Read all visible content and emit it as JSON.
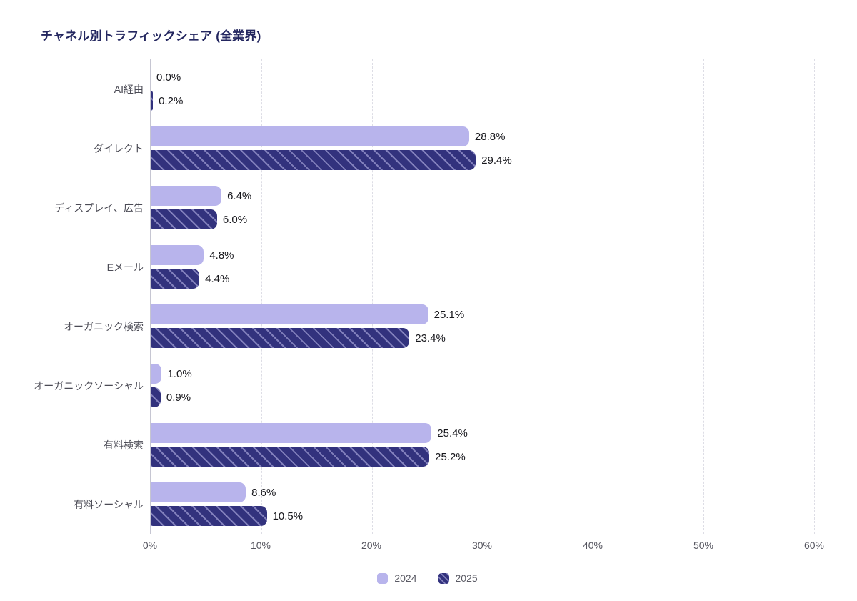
{
  "title": "チャネル別トラフィックシェア (全業界)",
  "legend": [
    {
      "label": "2024",
      "color": "#b8b4ec",
      "hatch": false
    },
    {
      "label": "2025",
      "color": "#32327d",
      "hatch": true
    }
  ],
  "chart_data": {
    "type": "bar",
    "orientation": "horizontal",
    "title": "チャネル別トラフィックシェア (全業界)",
    "categories": [
      "AI経由",
      "ダイレクト",
      "ディスプレイ、広告",
      "Eメール",
      "オーガニック検索",
      "オーガニックソーシャル",
      "有料検索",
      "有料ソーシャル"
    ],
    "series": [
      {
        "name": "2024",
        "color": "#b8b4ec",
        "hatch": false,
        "values": [
          0.0,
          28.8,
          6.4,
          4.8,
          25.1,
          1.0,
          25.4,
          8.6
        ]
      },
      {
        "name": "2025",
        "color": "#32327d",
        "hatch": true,
        "values": [
          0.2,
          29.4,
          6.0,
          4.4,
          23.4,
          0.9,
          25.2,
          10.5
        ]
      }
    ],
    "value_labels": [
      [
        "0.0%",
        "28.8%",
        "6.4%",
        "4.8%",
        "25.1%",
        "1.0%",
        "25.4%",
        "8.6%"
      ],
      [
        "0.2%",
        "29.4%",
        "6.0%",
        "4.4%",
        "23.4%",
        "0.9%",
        "25.2%",
        "10.5%"
      ]
    ],
    "xlabel": "",
    "ylabel": "",
    "xlim": [
      0,
      60
    ],
    "xticks": [
      "0%",
      "10%",
      "20%",
      "30%",
      "40%",
      "50%",
      "60%"
    ],
    "grid": "vertical-dashed",
    "legend_position": "bottom-center"
  }
}
